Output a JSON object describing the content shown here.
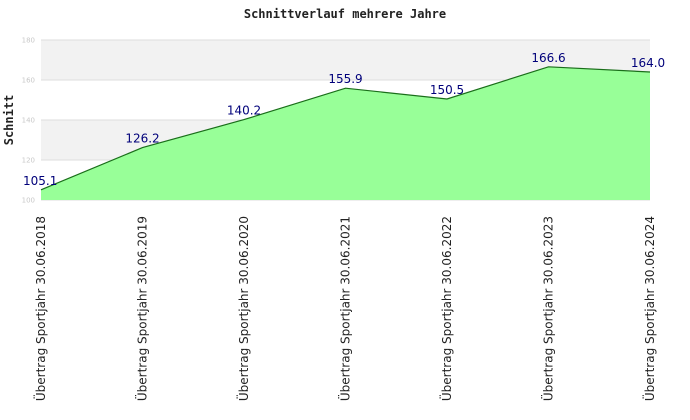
{
  "chart_data": {
    "type": "area",
    "title": "Schnittverlauf mehrere Jahre",
    "xlabel": "",
    "ylabel": "Schnitt",
    "categories": [
      "Übertrag Sportjahr 30.06.2018",
      "Übertrag Sportjahr 30.06.2019",
      "Übertrag Sportjahr 30.06.2020",
      "Übertrag Sportjahr 30.06.2021",
      "Übertrag Sportjahr 30.06.2022",
      "Übertrag Sportjahr 30.06.2023",
      "Übertrag Sportjahr 30.06.2024"
    ],
    "values": [
      105.1,
      126.2,
      140.2,
      155.9,
      150.5,
      166.6,
      164.0
    ],
    "data_labels": [
      "105.1",
      "126.2",
      "140.2",
      "155.9",
      "150.5",
      "166.6",
      "164.0"
    ],
    "ylim": [
      100,
      180
    ],
    "yticks": [
      100,
      120,
      140,
      160,
      180
    ],
    "ytick_labels": [
      "100",
      "120",
      "140",
      "160",
      "180"
    ],
    "grid": true,
    "colors": {
      "fill": "#98ff98",
      "line": "#1a6e1a",
      "band": "#f2f2f2",
      "grid": "#dddddd",
      "value_label": "#00007a"
    }
  }
}
